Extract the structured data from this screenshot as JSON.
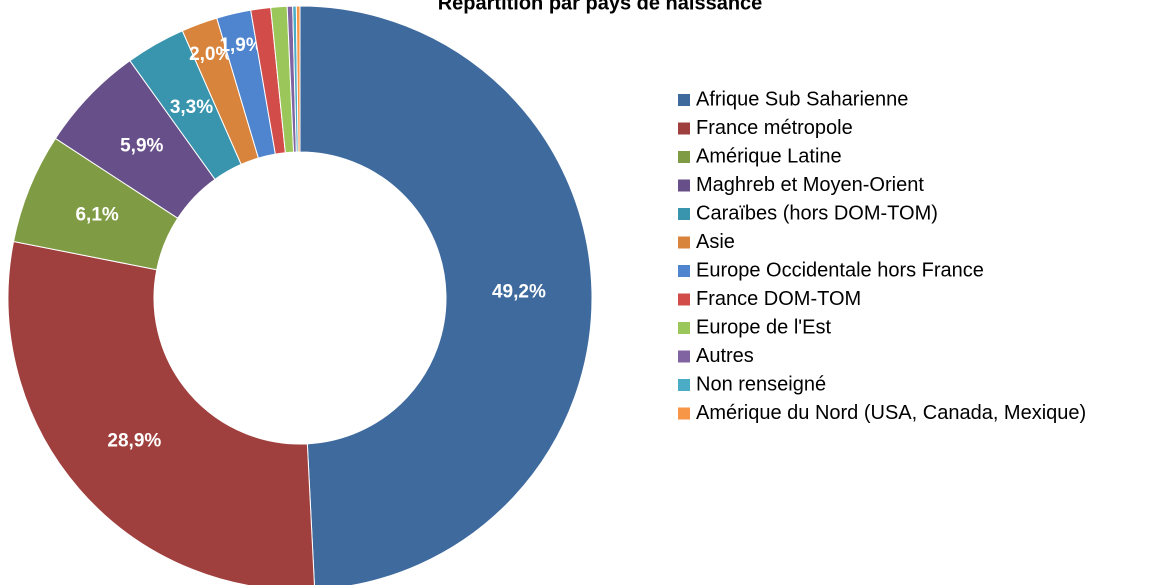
{
  "chart_data": {
    "type": "donut",
    "title": "Répartition par pays de naissance",
    "categories": [
      "Afrique Sub Saharienne",
      "France métropole",
      "Amérique Latine",
      "Maghreb et Moyen-Orient",
      "Caraïbes (hors DOM-TOM)",
      "Asie",
      "Europe Occidentale hors France",
      "France DOM-TOM",
      "Europe de l'Est",
      "Autres",
      "Non renseigné",
      "Amérique du Nord (USA, Canada, Mexique)"
    ],
    "values": [
      49.2,
      28.9,
      6.1,
      5.9,
      3.3,
      2.0,
      1.9,
      1.1,
      0.9,
      0.3,
      0.2,
      0.2
    ],
    "value_labels": [
      "49,2%",
      "28,9%",
      "6,1%",
      "5,9%",
      "3,3%",
      "2,0%",
      "1,9%",
      null,
      null,
      null,
      null,
      null
    ],
    "colors": [
      "#3f6a9e",
      "#a0403e",
      "#7f9c45",
      "#674f8a",
      "#3994ae",
      "#d9843d",
      "#4f85cf",
      "#d24c4a",
      "#9bc75a",
      "#8064a2",
      "#4bacc6",
      "#f79646"
    ],
    "legend": "right"
  }
}
